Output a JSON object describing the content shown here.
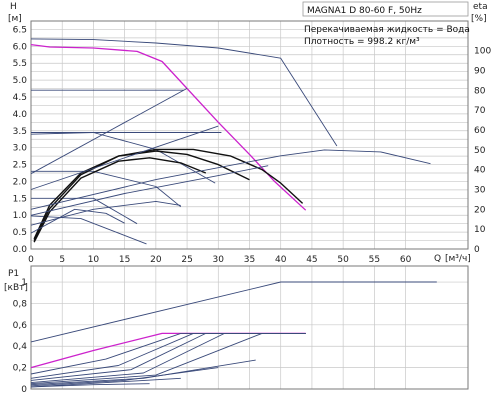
{
  "chart_data": [
    {
      "type": "line",
      "title": "MAGNA1 D 80-60 F, 50Hz",
      "info_lines": [
        "Перекачиваемая жидкость = Вода",
        "Плотность = 998.2 кг/м³"
      ],
      "ylabel": "H",
      "ylabel_unit": "[м]",
      "y2label": "eta",
      "y2label_unit": "[%]",
      "xlabel": "Q",
      "xlabel_unit": "[м³/ч]",
      "xlim": [
        0,
        70
      ],
      "ylim": [
        0,
        6.75
      ],
      "y2lim": [
        0,
        115
      ],
      "grid": true,
      "x_ticks": [
        0,
        5,
        10,
        15,
        20,
        25,
        30,
        35,
        40,
        45,
        50,
        55,
        60
      ],
      "y_ticks": [
        "0.0",
        "0.25",
        "0.5",
        "0.75",
        "1.0",
        "1.25",
        "1.5",
        "1.75",
        "2.0",
        "2.25",
        "2.5",
        "2.75",
        "3.0",
        "3.25",
        "3.5",
        "3.75",
        "4.0",
        "4.25",
        "4.5",
        "4.75",
        "5.0",
        "5.25",
        "5.5",
        "5.75",
        "6.0",
        "6.25",
        "6.5"
      ],
      "y_tick_labels": [
        "0.0",
        "",
        "0.5",
        "",
        "1.0",
        "",
        "1.5",
        "",
        "2.0",
        "",
        "2.5",
        "",
        "3.0",
        "",
        "3.5",
        "",
        "4.0",
        "",
        "4.5",
        "",
        "5.0",
        "",
        "5.5",
        "",
        "6.0",
        "",
        "6.5"
      ],
      "y2_ticks": [
        0,
        10,
        20,
        30,
        40,
        50,
        60,
        70,
        80,
        90,
        100
      ],
      "head_series": [
        {
          "color": "#3a4a7a",
          "x": [
            0,
            10,
            20,
            30,
            40,
            49
          ],
          "y": [
            6.22,
            6.2,
            6.1,
            5.95,
            5.65,
            3.05
          ]
        },
        {
          "color": "#cc22cc",
          "x": [
            0,
            3,
            10,
            17,
            21,
            30,
            35,
            39,
            44
          ],
          "y": [
            6.05,
            5.98,
            5.95,
            5.85,
            5.55,
            3.75,
            2.8,
            2.0,
            1.15
          ]
        },
        {
          "color": "#3a4a7a",
          "x": [
            0,
            24.5
          ],
          "y": [
            4.7,
            4.7
          ]
        },
        {
          "color": "#3a4a7a",
          "x": [
            0,
            30.5
          ],
          "y": [
            3.45,
            3.45
          ]
        },
        {
          "color": "#3a4a7a",
          "x": [
            0,
            10,
            20,
            29.5
          ],
          "y": [
            3.4,
            3.45,
            2.95,
            1.95
          ]
        },
        {
          "color": "#3a4a7a",
          "x": [
            0,
            10,
            20,
            24
          ],
          "y": [
            2.3,
            2.3,
            1.85,
            1.25
          ]
        },
        {
          "color": "#3a4a7a",
          "x": [
            0,
            10,
            17
          ],
          "y": [
            1.5,
            1.5,
            0.75
          ]
        },
        {
          "color": "#3a4a7a",
          "x": [
            0,
            8,
            18.5
          ],
          "y": [
            0.98,
            0.9,
            0.15
          ]
        },
        {
          "color": "#111111",
          "x": [
            0.5,
            3,
            8,
            14,
            20,
            26,
            32,
            37,
            40,
            43.5
          ],
          "y": [
            0.3,
            1.3,
            2.25,
            2.75,
            2.95,
            2.95,
            2.75,
            2.35,
            1.95,
            1.35
          ]
        },
        {
          "color": "#111111",
          "x": [
            0.5,
            3,
            8,
            14,
            20,
            25,
            30,
            35
          ],
          "y": [
            0.25,
            1.2,
            2.2,
            2.75,
            2.9,
            2.8,
            2.5,
            2.05
          ]
        },
        {
          "color": "#111111",
          "x": [
            0.5,
            3,
            8,
            14,
            19,
            24,
            28
          ],
          "y": [
            0.2,
            1.1,
            2.1,
            2.6,
            2.7,
            2.55,
            2.25
          ]
        }
      ],
      "eta_series": [
        {
          "color": "#3a4a7a",
          "x": [
            0,
            25
          ],
          "y": [
            38,
            81
          ]
        },
        {
          "color": "#3a4a7a",
          "x": [
            0,
            30
          ],
          "y": [
            30,
            62
          ]
        },
        {
          "color": "#3a4a7a",
          "x": [
            0,
            20,
            40,
            47,
            56,
            64
          ],
          "y": [
            20,
            35,
            47,
            50,
            49,
            43
          ]
        },
        {
          "color": "#3a4a7a",
          "x": [
            0,
            15,
            30,
            38
          ],
          "y": [
            17,
            28,
            37,
            42
          ]
        },
        {
          "color": "#3a4a7a",
          "x": [
            0,
            10,
            20,
            24
          ],
          "y": [
            12,
            20,
            24,
            22
          ]
        },
        {
          "color": "#3a4a7a",
          "x": [
            0,
            7,
            12,
            15
          ],
          "y": [
            8,
            20,
            18,
            13
          ]
        }
      ]
    },
    {
      "type": "line",
      "ylabel": "P1",
      "ylabel_unit": "[кВт]",
      "xlim": [
        0,
        70
      ],
      "ylim": [
        0,
        1.15
      ],
      "y_ticks": [
        0,
        0.2,
        0.4,
        0.6,
        0.8,
        1.0
      ],
      "y_tick_labels": [
        "0",
        "0,2",
        "0,4",
        "0,6",
        "0,8",
        "1"
      ],
      "x_ticks": [
        0,
        5,
        10,
        15,
        20,
        25,
        30,
        35,
        40,
        45,
        50,
        55,
        60
      ],
      "series": [
        {
          "color": "#3a4a7a",
          "x": [
            0,
            40,
            65
          ],
          "y": [
            0.44,
            1.0,
            1.0
          ]
        },
        {
          "color": "#cc22cc",
          "x": [
            0,
            10,
            21,
            44
          ],
          "y": [
            0.2,
            0.36,
            0.52,
            0.52
          ]
        },
        {
          "color": "#3a4a7a",
          "x": [
            0,
            12,
            24,
            44
          ],
          "y": [
            0.14,
            0.28,
            0.52,
            0.52
          ]
        },
        {
          "color": "#3a4a7a",
          "x": [
            0,
            14,
            26,
            44
          ],
          "y": [
            0.1,
            0.22,
            0.52,
            0.52
          ]
        },
        {
          "color": "#3a4a7a",
          "x": [
            0,
            16,
            28,
            44
          ],
          "y": [
            0.08,
            0.18,
            0.52,
            0.52
          ]
        },
        {
          "color": "#3a4a7a",
          "x": [
            0,
            18,
            31,
            44
          ],
          "y": [
            0.06,
            0.15,
            0.52,
            0.52
          ]
        },
        {
          "color": "#3a4a7a",
          "x": [
            0,
            20,
            37,
            44
          ],
          "y": [
            0.05,
            0.13,
            0.52,
            0.52
          ]
        },
        {
          "color": "#3a4a7a",
          "x": [
            0,
            18,
            36
          ],
          "y": [
            0.04,
            0.1,
            0.27
          ]
        },
        {
          "color": "#3a4a7a",
          "x": [
            0,
            15,
            30
          ],
          "y": [
            0.03,
            0.08,
            0.2
          ]
        },
        {
          "color": "#3a4a7a",
          "x": [
            0,
            12,
            24
          ],
          "y": [
            0.02,
            0.06,
            0.1
          ]
        },
        {
          "color": "#3a4a7a",
          "x": [
            0,
            10,
            19
          ],
          "y": [
            0.02,
            0.04,
            0.05
          ]
        }
      ]
    }
  ]
}
